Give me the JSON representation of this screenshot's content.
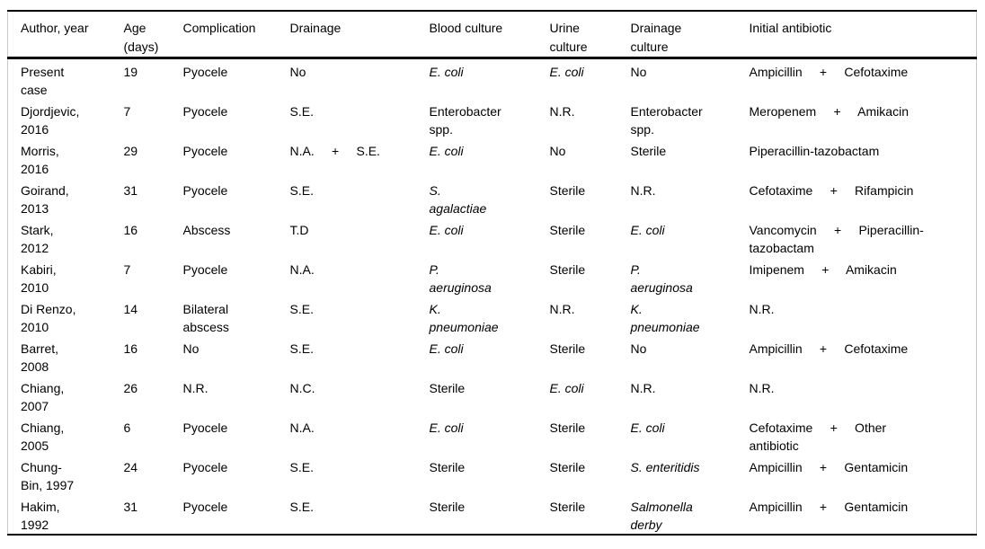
{
  "table": {
    "columns": [
      {
        "key": "author",
        "label": "Author, year"
      },
      {
        "key": "age",
        "label": "Age\n(days)"
      },
      {
        "key": "complication",
        "label": "Complication"
      },
      {
        "key": "drainage",
        "label": "Drainage"
      },
      {
        "key": "blood_culture",
        "label": "Blood culture"
      },
      {
        "key": "urine_culture",
        "label": "Urine\nculture"
      },
      {
        "key": "drainage_culture",
        "label": "Drainage\nculture"
      },
      {
        "key": "initial_antibiotic",
        "label": "Initial antibiotic"
      }
    ],
    "rows": [
      {
        "author": "Present\ncase",
        "age": "19",
        "complication": "Pyocele",
        "drainage": "No",
        "blood_culture": "E. coli",
        "urine_culture": "E. coli",
        "drainage_culture": "No",
        "initial_antibiotic": "Ampicillin + Cefotaxime",
        "italic": [
          "blood_culture",
          "urine_culture"
        ]
      },
      {
        "author": "Djordjevic,\n2016",
        "age": "7",
        "complication": "Pyocele",
        "drainage": "S.E.",
        "blood_culture": "Enterobacter\nspp.",
        "urine_culture": "N.R.",
        "drainage_culture": "Enterobacter\nspp.",
        "initial_antibiotic": "Meropenem + Amikacin",
        "italic": []
      },
      {
        "author": "Morris,\n2016",
        "age": "29",
        "complication": "Pyocele",
        "drainage": "N.A. + S.E.",
        "blood_culture": "E. coli",
        "urine_culture": "No",
        "drainage_culture": "Sterile",
        "initial_antibiotic": "Piperacillin-tazobactam",
        "italic": [
          "blood_culture"
        ]
      },
      {
        "author": "Goirand,\n2013",
        "age": "31",
        "complication": "Pyocele",
        "drainage": "S.E.",
        "blood_culture": "S.\nagalactiae",
        "urine_culture": "Sterile",
        "drainage_culture": "N.R.",
        "initial_antibiotic": "Cefotaxime + Rifampicin",
        "italic": [
          "blood_culture"
        ]
      },
      {
        "author": "Stark,\n2012",
        "age": "16",
        "complication": "Abscess",
        "drainage": "T.D",
        "blood_culture": "E. coli",
        "urine_culture": "Sterile",
        "drainage_culture": "E. coli",
        "initial_antibiotic": "Vancomycin + Piperacillin-\ntazobactam",
        "italic": [
          "blood_culture",
          "drainage_culture"
        ]
      },
      {
        "author": "Kabiri,\n2010",
        "age": "7",
        "complication": "Pyocele",
        "drainage": "N.A.",
        "blood_culture": "P.\naeruginosa",
        "urine_culture": "Sterile",
        "drainage_culture": "P.\naeruginosa",
        "initial_antibiotic": "Imipenem + Amikacin",
        "italic": [
          "blood_culture",
          "drainage_culture"
        ]
      },
      {
        "author": "Di Renzo,\n2010",
        "age": "14",
        "complication": "Bilateral\nabscess",
        "drainage": "S.E.",
        "blood_culture": "K.\npneumoniae",
        "urine_culture": "N.R.",
        "drainage_culture": "K.\npneumoniae",
        "initial_antibiotic": "N.R.",
        "italic": [
          "blood_culture",
          "drainage_culture"
        ]
      },
      {
        "author": "Barret,\n2008",
        "age": "16",
        "complication": "No",
        "drainage": "S.E.",
        "blood_culture": "E. coli",
        "urine_culture": "Sterile",
        "drainage_culture": "No",
        "initial_antibiotic": "Ampicillin + Cefotaxime",
        "italic": [
          "blood_culture"
        ]
      },
      {
        "author": "Chiang,\n2007",
        "age": "26",
        "complication": "N.R.",
        "drainage": "N.C.",
        "blood_culture": "Sterile",
        "urine_culture": "E. coli",
        "drainage_culture": "N.R.",
        "initial_antibiotic": "N.R.",
        "italic": [
          "urine_culture"
        ]
      },
      {
        "author": "Chiang,\n2005",
        "age": "6",
        "complication": "Pyocele",
        "drainage": "N.A.",
        "blood_culture": "E. coli",
        "urine_culture": "Sterile",
        "drainage_culture": "E. coli",
        "initial_antibiotic": "Cefotaxime + Other\nantibiotic",
        "italic": [
          "blood_culture",
          "drainage_culture"
        ]
      },
      {
        "author": "Chung-\nBin, 1997",
        "age": "24",
        "complication": "Pyocele",
        "drainage": "S.E.",
        "blood_culture": "Sterile",
        "urine_culture": "Sterile",
        "drainage_culture": "S. enteritidis",
        "initial_antibiotic": "Ampicillin + Gentamicin",
        "italic": [
          "drainage_culture"
        ]
      },
      {
        "author": "Hakim,\n1992",
        "age": "31",
        "complication": "Pyocele",
        "drainage": "S.E.",
        "blood_culture": "Sterile",
        "urine_culture": "Sterile",
        "drainage_culture": "Salmonella\nderby",
        "initial_antibiotic": "Ampicillin + Gentamicin",
        "italic": [
          "drainage_culture"
        ]
      }
    ]
  },
  "colors": {
    "rule": "#000000",
    "frame": "#c9c9c9",
    "text": "#000000",
    "background": "#ffffff"
  }
}
